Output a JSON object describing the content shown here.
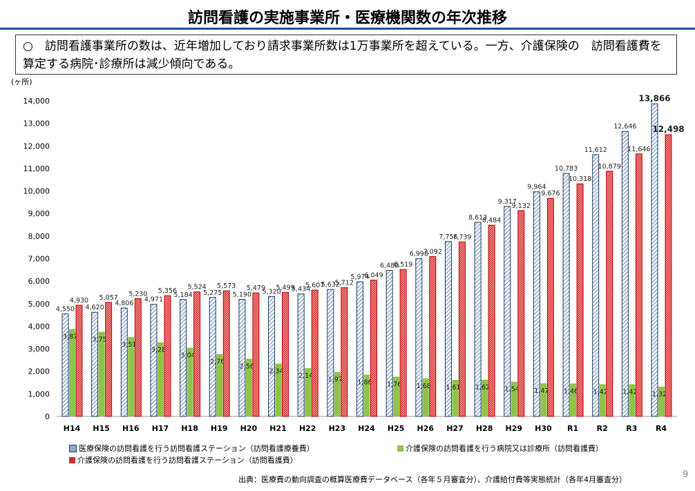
{
  "title": "訪問看護の実施事業所・医療機関数の年次推移",
  "note": "○　訪問看護事業所の数は、近年増加しており請求事業所数は1万事業所を超えている。一方、介護保険の　訪問看護費を算定する病院･診療所は減少傾向である。",
  "source": "出典：医療費の動向調査の概算医療費データベース（各年５月審査分）、介護給付費等実態統計（各年4月審査分）",
  "page": "9",
  "chart_data": {
    "type": "bar",
    "ylabel": "(ヶ所)",
    "ylim": [
      0,
      14000
    ],
    "yticks": [
      0,
      1000,
      2000,
      3000,
      4000,
      5000,
      6000,
      7000,
      8000,
      9000,
      10000,
      11000,
      12000,
      13000,
      14000
    ],
    "categories": [
      "H14",
      "H15",
      "H16",
      "H17",
      "H18",
      "H19",
      "H20",
      "H21",
      "H22",
      "H23",
      "H24",
      "H25",
      "H26",
      "H27",
      "H28",
      "H29",
      "H30",
      "R1",
      "R2",
      "R3",
      "R4"
    ],
    "series": [
      {
        "name": "医療保険の訪問看護を行う訪問看護ステーション（訪問看護療養費）",
        "color": "#1f3864",
        "values": [
          4550,
          4620,
          4806,
          4971,
          5184,
          5275,
          5190,
          5320,
          5434,
          5632,
          5974,
          6480,
          6998,
          7756,
          8613,
          9317,
          9964,
          10783,
          11612,
          12646,
          13866
        ]
      },
      {
        "name": "介護保険の訪問看護を行う病院又は診療所（訪問看護費）",
        "color": "#8fc44a",
        "values": [
          3874,
          3752,
          3518,
          3286,
          3044,
          2767,
          2561,
          2345,
          2142,
          1970,
          1860,
          1766,
          1687,
          1617,
          1629,
          1540,
          1470,
          1461,
          1428,
          1426,
          1322
        ]
      },
      {
        "name": "介護保険の訪問看護を行う訪問看護ステーション（訪問看護費）",
        "color": "#d42a2a",
        "values": [
          4930,
          5057,
          5230,
          5356,
          5524,
          5573,
          5479,
          5499,
          5607,
          5712,
          6049,
          6519,
          7092,
          7739,
          8484,
          9132,
          9676,
          10318,
          10879,
          11646,
          12498
        ]
      }
    ],
    "legend": "bottom"
  }
}
